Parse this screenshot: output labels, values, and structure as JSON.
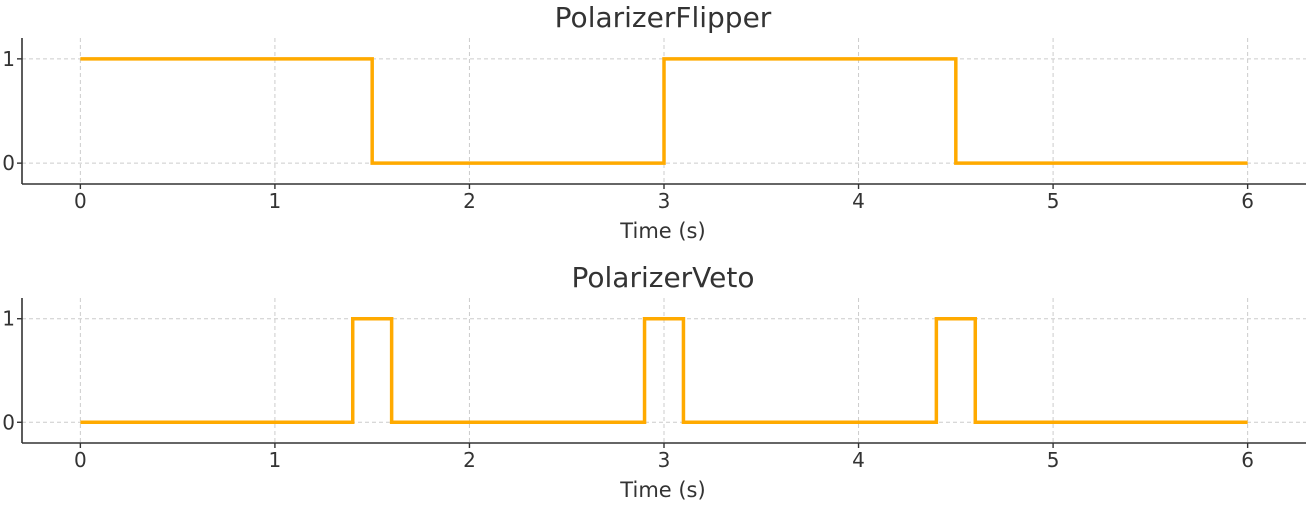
{
  "chart_data": [
    {
      "type": "line",
      "step": true,
      "title": "PolarizerFlipper",
      "xlabel": "Time (s)",
      "ylabel": "",
      "xlim": [
        -0.3,
        6.3
      ],
      "ylim": [
        -0.2,
        1.2
      ],
      "xticks": [
        0,
        1,
        2,
        3,
        4,
        5,
        6
      ],
      "yticks": [
        0,
        1
      ],
      "grid": true,
      "series": [
        {
          "color": "#FFAA00",
          "x": [
            0,
            1.5,
            1.5,
            3.0,
            3.0,
            4.5,
            4.5,
            6.0
          ],
          "y": [
            1,
            1,
            0,
            0,
            1,
            1,
            0,
            0
          ]
        }
      ]
    },
    {
      "type": "line",
      "step": true,
      "title": "PolarizerVeto",
      "xlabel": "Time (s)",
      "ylabel": "",
      "xlim": [
        -0.3,
        6.3
      ],
      "ylim": [
        -0.2,
        1.2
      ],
      "xticks": [
        0,
        1,
        2,
        3,
        4,
        5,
        6
      ],
      "yticks": [
        0,
        1
      ],
      "grid": true,
      "series": [
        {
          "color": "#FFAA00",
          "x": [
            0,
            1.4,
            1.4,
            1.6,
            1.6,
            2.9,
            2.9,
            3.1,
            3.1,
            4.4,
            4.4,
            4.6,
            4.6,
            6.0
          ],
          "y": [
            0,
            0,
            1,
            1,
            0,
            0,
            1,
            1,
            0,
            0,
            1,
            1,
            0,
            0
          ]
        }
      ]
    }
  ]
}
